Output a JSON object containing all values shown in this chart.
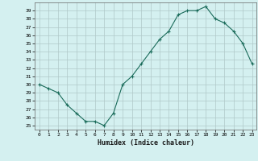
{
  "x": [
    0,
    1,
    2,
    3,
    4,
    5,
    6,
    7,
    8,
    9,
    10,
    11,
    12,
    13,
    14,
    15,
    16,
    17,
    18,
    19,
    20,
    21,
    22,
    23
  ],
  "y": [
    30,
    29.5,
    29,
    27.5,
    26.5,
    25.5,
    25.5,
    25,
    26.5,
    30,
    31,
    32.5,
    34,
    35.5,
    36.5,
    38.5,
    39,
    39,
    39.5,
    38,
    37.5,
    36.5,
    35,
    32.5
  ],
  "line_color": "#1a6b5a",
  "marker": "+",
  "bg_color": "#d4f0f0",
  "grid_color": "#b0c8c8",
  "xlabel": "Humidex (Indice chaleur)",
  "ylabel_ticks": [
    25,
    26,
    27,
    28,
    29,
    30,
    31,
    32,
    33,
    34,
    35,
    36,
    37,
    38,
    39
  ],
  "xlim": [
    -0.5,
    23.5
  ],
  "ylim": [
    24.5,
    40.0
  ],
  "figsize": [
    3.2,
    2.0
  ],
  "dpi": 100
}
